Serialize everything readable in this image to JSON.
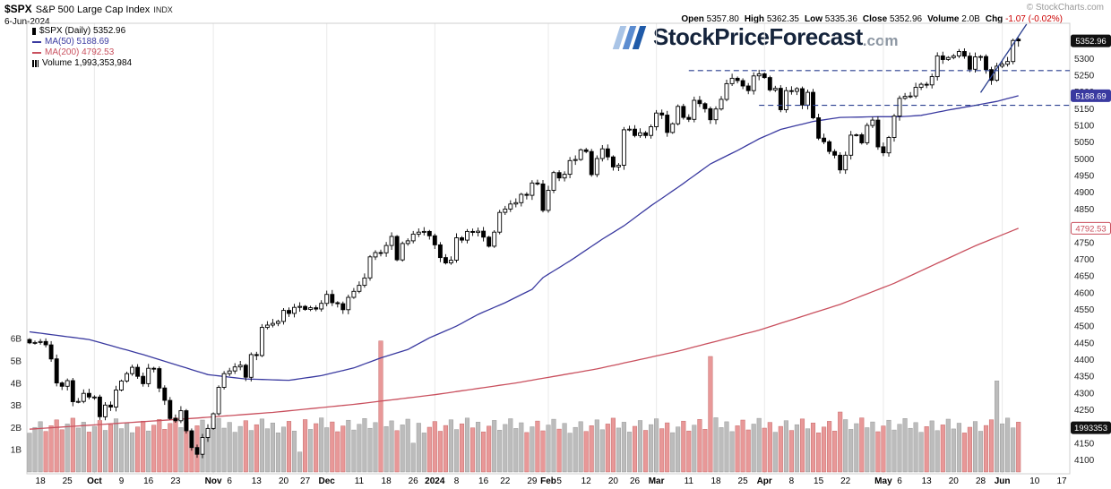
{
  "header": {
    "symbol": "$SPX",
    "name": "S&P 500 Large Cap Index",
    "exchange": "INDX",
    "date": "6-Jun-2024",
    "copyright": "© StockCharts.com",
    "quote": {
      "open_label": "Open",
      "open": "5357.80",
      "high_label": "High",
      "high": "5362.35",
      "low_label": "Low",
      "low": "5335.36",
      "close_label": "Close",
      "close": "5352.96",
      "volume_label": "Volume",
      "volume": "2.0B",
      "chg_label": "Chg",
      "chg": "-1.07 (-0.02%)"
    }
  },
  "legend": {
    "spx": "$SPX (Daily) 5352.96",
    "ma50": "MA(50) 5188.69",
    "ma200": "MA(200) 4792.53",
    "volume": "Volume 1,993,353,984"
  },
  "watermark": {
    "brand": "StockPriceForecast",
    "suffix": ".com"
  },
  "colors": {
    "candle_up": "#ffffff",
    "candle_down": "#000000",
    "candle_stroke": "#000000",
    "ma50": "#3a3aa0",
    "ma200": "#c9505e",
    "annotation": "#2a3f8f",
    "vol_up": "#bcbcbc",
    "vol_up_stroke": "#999999",
    "vol_down": "#e89898",
    "vol_down_stroke": "#c66a6a",
    "grid": "#e9e9e9",
    "axis_text": "#222222",
    "chg_negative": "#cc0000"
  },
  "chart_data": {
    "type": "candlestick",
    "symbol": "$SPX",
    "timeframe": "Daily",
    "title": "$SPX S&P 500 Large Cap Index (Daily) with MA(50), MA(200) and Volume",
    "y_axis": {
      "min": 4080,
      "max": 5400,
      "tick_min": 4100,
      "tick_max": 5300,
      "tick_step": 50
    },
    "volume_axis": {
      "ticks": [
        "1B",
        "2B",
        "3B",
        "4B",
        "5B",
        "6B"
      ],
      "max_billions": 6
    },
    "x_axis": {
      "total_slots": 193,
      "month_indices": [
        12,
        34,
        55,
        75,
        96,
        116,
        136,
        158,
        180
      ],
      "ticks": [
        {
          "i": 2,
          "label": "18"
        },
        {
          "i": 7,
          "label": "25"
        },
        {
          "i": 12,
          "label": "Oct",
          "bold": true
        },
        {
          "i": 17,
          "label": "9"
        },
        {
          "i": 22,
          "label": "16"
        },
        {
          "i": 27,
          "label": "23"
        },
        {
          "i": 34,
          "label": "Nov",
          "bold": true
        },
        {
          "i": 37,
          "label": "6"
        },
        {
          "i": 42,
          "label": "13"
        },
        {
          "i": 47,
          "label": "20"
        },
        {
          "i": 51,
          "label": "27"
        },
        {
          "i": 55,
          "label": "Dec",
          "bold": true
        },
        {
          "i": 61,
          "label": "11"
        },
        {
          "i": 66,
          "label": "18"
        },
        {
          "i": 71,
          "label": "26"
        },
        {
          "i": 75,
          "label": "2024",
          "bold": true
        },
        {
          "i": 79,
          "label": "8"
        },
        {
          "i": 84,
          "label": "16"
        },
        {
          "i": 88,
          "label": "22"
        },
        {
          "i": 93,
          "label": "29"
        },
        {
          "i": 96,
          "label": "Feb",
          "bold": true
        },
        {
          "i": 98,
          "label": "5"
        },
        {
          "i": 103,
          "label": "12"
        },
        {
          "i": 108,
          "label": "20"
        },
        {
          "i": 112,
          "label": "26"
        },
        {
          "i": 116,
          "label": "Mar",
          "bold": true
        },
        {
          "i": 122,
          "label": "11"
        },
        {
          "i": 127,
          "label": "18"
        },
        {
          "i": 132,
          "label": "25"
        },
        {
          "i": 136,
          "label": "Apr",
          "bold": true
        },
        {
          "i": 141,
          "label": "8"
        },
        {
          "i": 146,
          "label": "15"
        },
        {
          "i": 151,
          "label": "22"
        },
        {
          "i": 158,
          "label": "May",
          "bold": true
        },
        {
          "i": 161,
          "label": "6"
        },
        {
          "i": 166,
          "label": "13"
        },
        {
          "i": 171,
          "label": "20"
        },
        {
          "i": 176,
          "label": "28"
        },
        {
          "i": 180,
          "label": "Jun",
          "bold": true
        },
        {
          "i": 186,
          "label": "10"
        },
        {
          "i": 191,
          "label": "17"
        }
      ]
    },
    "first_open": 4460,
    "closes": [
      4450,
      4451,
      4454,
      4444,
      4402,
      4330,
      4320,
      4337,
      4274,
      4275,
      4299,
      4288,
      4288,
      4229,
      4264,
      4258,
      4309,
      4336,
      4358,
      4377,
      4350,
      4328,
      4374,
      4373,
      4315,
      4278,
      4224,
      4217,
      4247,
      4187,
      4137,
      4117,
      4167,
      4194,
      4238,
      4317,
      4358,
      4366,
      4378,
      4383,
      4347,
      4415,
      4412,
      4496,
      4503,
      4508,
      4514,
      4547,
      4538,
      4556,
      4559,
      4550,
      4555,
      4551,
      4568,
      4595,
      4570,
      4567,
      4549,
      4586,
      4604,
      4622,
      4644,
      4707,
      4720,
      4719,
      4741,
      4768,
      4698,
      4747,
      4755,
      4775,
      4781,
      4783,
      4770,
      4743,
      4705,
      4689,
      4697,
      4764,
      4757,
      4783,
      4780,
      4784,
      4766,
      4739,
      4781,
      4840,
      4850,
      4865,
      4869,
      4894,
      4891,
      4928,
      4925,
      4846,
      4906,
      4959,
      4943,
      4954,
      4995,
      4998,
      5027,
      5022,
      4953,
      5001,
      5030,
      5006,
      4976,
      4981,
      5087,
      5089,
      5070,
      5078,
      5070,
      5096,
      5137,
      5131,
      5079,
      5105,
      5157,
      5124,
      5118,
      5175,
      5165,
      5150,
      5117,
      5149,
      5178,
      5225,
      5241,
      5234,
      5218,
      5204,
      5248,
      5254,
      5243,
      5206,
      5211,
      5147,
      5204,
      5202,
      5210,
      5161,
      5199,
      5123,
      5062,
      5051,
      5022,
      5011,
      4967,
      5011,
      5071,
      5072,
      5048,
      5100,
      5116,
      5036,
      5018,
      5064,
      5128,
      5181,
      5187,
      5188,
      5214,
      5223,
      5221,
      5246,
      5308,
      5297,
      5303,
      5308,
      5321,
      5307,
      5268,
      5305,
      5306,
      5267,
      5235,
      5277,
      5283,
      5291,
      5354,
      5352.96
    ],
    "last_ohlc": {
      "open": 5357.8,
      "high": 5362.35,
      "low": 5335.36,
      "close": 5352.96
    },
    "volume_base_billions": 1.75,
    "volume_noise_amp": 0.7,
    "volume_spikes": {
      "50": 0.9,
      "65": 5.9,
      "71": 1.3,
      "126": 5.2,
      "150": 2.7,
      "179": 4.1
    },
    "last_volume_billions": 1.993,
    "ma50": {
      "label": "MA(50)",
      "last": 5188.69,
      "points": [
        [
          0,
          4483
        ],
        [
          11,
          4460
        ],
        [
          21,
          4415
        ],
        [
          33,
          4355
        ],
        [
          40,
          4342
        ],
        [
          48,
          4338
        ],
        [
          54,
          4352
        ],
        [
          60,
          4375
        ],
        [
          65,
          4405
        ],
        [
          70,
          4430
        ],
        [
          74,
          4465
        ],
        [
          79,
          4500
        ],
        [
          83,
          4535
        ],
        [
          88,
          4570
        ],
        [
          93,
          4610
        ],
        [
          95,
          4645
        ],
        [
          100,
          4695
        ],
        [
          106,
          4760
        ],
        [
          110,
          4800
        ],
        [
          115,
          4860
        ],
        [
          120,
          4915
        ],
        [
          126,
          4985
        ],
        [
          131,
          5025
        ],
        [
          135,
          5060
        ],
        [
          139,
          5088
        ],
        [
          145,
          5112
        ],
        [
          150,
          5124
        ],
        [
          157,
          5126
        ],
        [
          161,
          5126
        ],
        [
          165,
          5130
        ],
        [
          170,
          5146
        ],
        [
          175,
          5160
        ],
        [
          179,
          5172
        ],
        [
          183,
          5188.69
        ]
      ]
    },
    "ma200": {
      "label": "MA(200)",
      "last": 4792.53,
      "points": [
        [
          0,
          4192
        ],
        [
          15,
          4208
        ],
        [
          30,
          4224
        ],
        [
          45,
          4242
        ],
        [
          60,
          4266
        ],
        [
          75,
          4295
        ],
        [
          90,
          4330
        ],
        [
          105,
          4372
        ],
        [
          120,
          4425
        ],
        [
          135,
          4488
        ],
        [
          150,
          4565
        ],
        [
          160,
          4628
        ],
        [
          168,
          4688
        ],
        [
          175,
          4740
        ],
        [
          183,
          4792.53
        ]
      ]
    },
    "annotations": {
      "dashed_lines": [
        {
          "price": 5264,
          "from_index": 122
        },
        {
          "price": 5160,
          "from_index": 135
        }
      ],
      "trendline": {
        "from_index": 176,
        "from_price": 5198,
        "to_index": 184.5,
        "to_price": 5408
      }
    },
    "badges": {
      "close": {
        "text": "5352.96",
        "price": 5352.96,
        "bg": "#111111",
        "fg": "#ffffff"
      },
      "ma50": {
        "text": "5188.69",
        "price": 5188.69,
        "bg": "#3a3aa0",
        "fg": "#ffffff"
      },
      "ma200": {
        "text": "4792.53",
        "price": 4792.53,
        "bg": "#ffffff",
        "fg": "#c9505e",
        "border": "#c9505e"
      },
      "volume": {
        "text": "1993353",
        "billions": 1.993,
        "bg": "#111111",
        "fg": "#ffffff"
      }
    }
  }
}
